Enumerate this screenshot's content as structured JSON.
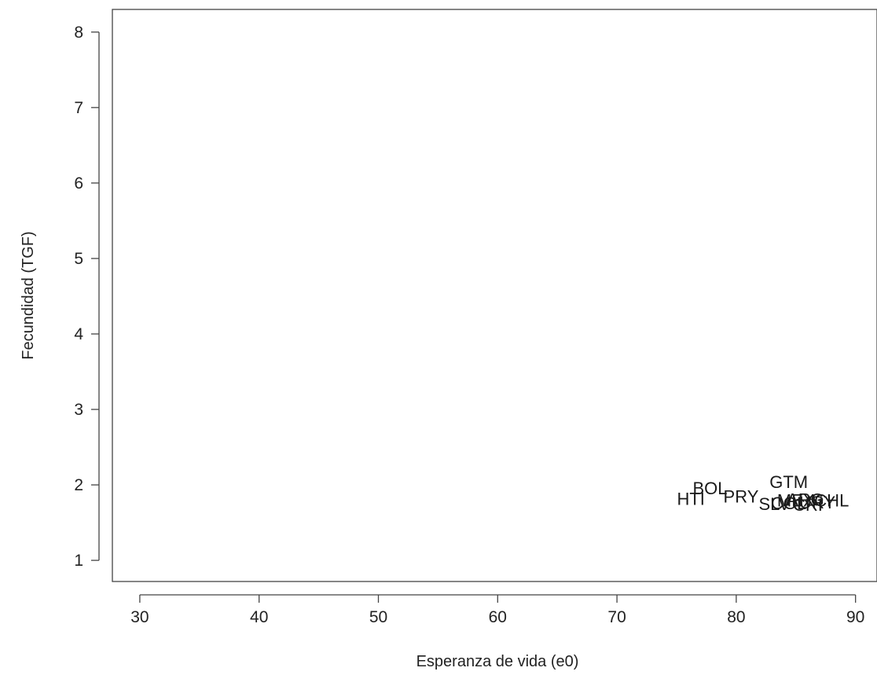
{
  "chart_data": {
    "type": "scatter",
    "title": "",
    "xlabel": "Esperanza de vida (e0)",
    "ylabel": "Fecundidad (TGF)",
    "xlim": [
      27.7,
      91.8
    ],
    "ylim": [
      0.72,
      8.3
    ],
    "x_ticks": [
      30,
      40,
      50,
      60,
      70,
      80,
      90
    ],
    "y_ticks": [
      1,
      2,
      3,
      4,
      5,
      6,
      7,
      8
    ],
    "grid": false,
    "marker": "text-label",
    "points": [
      {
        "label": "BOL",
        "x": 77.8,
        "y": 1.96
      },
      {
        "label": "HTI",
        "x": 76.2,
        "y": 1.82
      },
      {
        "label": "PRY",
        "x": 80.4,
        "y": 1.85
      },
      {
        "label": "GTM",
        "x": 84.4,
        "y": 2.04
      },
      {
        "label": "SLV",
        "x": 83.2,
        "y": 1.75
      },
      {
        "label": "CRI",
        "x": 86.0,
        "y": 1.74
      },
      {
        "label": "CHL",
        "x": 88.0,
        "y": 1.8
      },
      {
        "label": "MEX",
        "x": 85.0,
        "y": 1.8
      },
      {
        "label": "URY",
        "x": 86.8,
        "y": 1.77
      },
      {
        "label": "ARG",
        "x": 85.8,
        "y": 1.81
      },
      {
        "label": "COL",
        "x": 84.4,
        "y": 1.76
      }
    ]
  }
}
